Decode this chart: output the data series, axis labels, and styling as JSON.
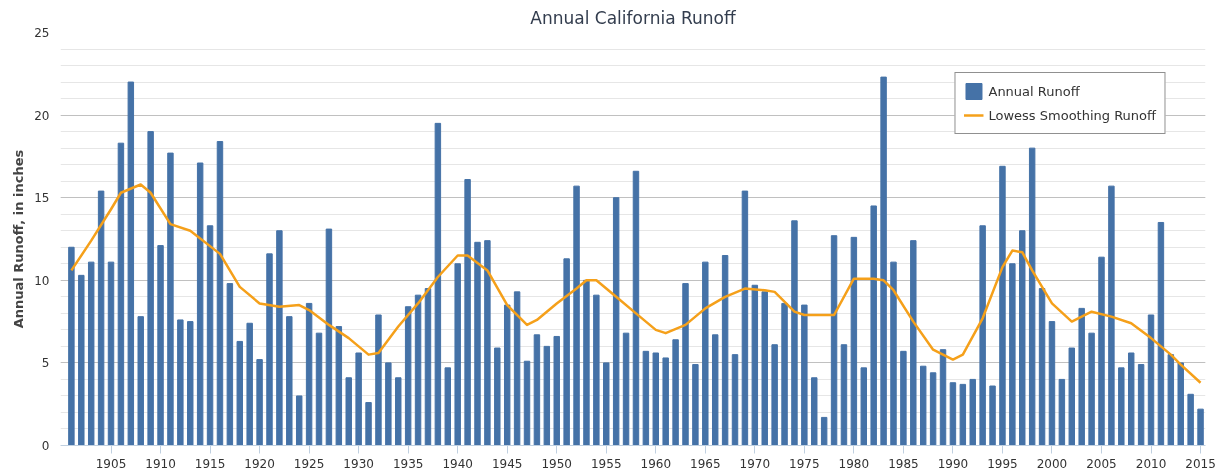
{
  "chart_data": {
    "type": "bar",
    "title": "Annual California Runoff",
    "ylabel": "Annual Runoff, in inches",
    "x": [
      1901,
      1902,
      1903,
      1904,
      1905,
      1906,
      1907,
      1908,
      1909,
      1910,
      1911,
      1912,
      1913,
      1914,
      1915,
      1916,
      1917,
      1918,
      1919,
      1920,
      1921,
      1922,
      1923,
      1924,
      1925,
      1926,
      1927,
      1928,
      1929,
      1930,
      1931,
      1932,
      1933,
      1934,
      1935,
      1936,
      1937,
      1938,
      1939,
      1940,
      1941,
      1942,
      1943,
      1944,
      1945,
      1946,
      1947,
      1948,
      1949,
      1950,
      1951,
      1952,
      1953,
      1954,
      1955,
      1956,
      1957,
      1958,
      1959,
      1960,
      1961,
      1962,
      1963,
      1964,
      1965,
      1966,
      1967,
      1968,
      1969,
      1970,
      1971,
      1972,
      1973,
      1974,
      1975,
      1976,
      1977,
      1978,
      1979,
      1980,
      1981,
      1982,
      1983,
      1984,
      1985,
      1986,
      1987,
      1988,
      1989,
      1990,
      1991,
      1992,
      1993,
      1994,
      1995,
      1996,
      1997,
      1998,
      1999,
      2000,
      2001,
      2002,
      2003,
      2004,
      2005,
      2006,
      2007,
      2008,
      2009,
      2010,
      2011,
      2012,
      2013,
      2014,
      2015
    ],
    "series": [
      {
        "name": "Annual Runoff",
        "color": "#4572a7",
        "values": [
          12.0,
          10.3,
          11.1,
          15.4,
          11.1,
          18.3,
          22.0,
          7.8,
          19.0,
          12.1,
          17.7,
          7.6,
          7.5,
          17.1,
          13.3,
          18.4,
          9.8,
          6.3,
          7.4,
          5.2,
          11.6,
          13.0,
          7.8,
          3.0,
          8.6,
          6.8,
          13.1,
          7.2,
          4.1,
          5.6,
          2.6,
          7.9,
          5.0,
          4.1,
          8.4,
          9.1,
          9.5,
          19.5,
          4.7,
          11.0,
          16.1,
          12.3,
          12.4,
          5.9,
          8.5,
          9.3,
          5.1,
          6.7,
          6.0,
          6.6,
          11.3,
          15.7,
          10.0,
          9.1,
          5.0,
          15.0,
          6.8,
          16.6,
          5.7,
          5.6,
          5.3,
          6.4,
          9.8,
          4.9,
          11.1,
          6.7,
          11.5,
          5.5,
          15.4,
          9.7,
          9.3,
          6.1,
          8.6,
          13.6,
          8.5,
          4.1,
          1.7,
          12.7,
          6.1,
          12.6,
          4.7,
          14.5,
          22.3,
          11.1,
          5.7,
          12.4,
          4.8,
          4.4,
          5.8,
          3.8,
          3.7,
          4.0,
          13.3,
          3.6,
          16.9,
          11.0,
          13.0,
          18.0,
          9.5,
          7.5,
          4.0,
          5.9,
          8.3,
          6.8,
          11.4,
          15.7,
          4.7,
          5.6,
          4.9,
          7.9,
          13.5,
          5.5,
          5.0,
          3.1,
          2.2
        ]
      },
      {
        "name": "Lowess Smoothing Runoff",
        "type": "line",
        "color": "#f5a01a",
        "x": [
          1901,
          1903,
          1905,
          1906,
          1908,
          1909,
          1911,
          1913,
          1916,
          1918,
          1920,
          1922,
          1924,
          1925,
          1927,
          1929,
          1931,
          1932,
          1934,
          1936,
          1938,
          1940,
          1941,
          1943,
          1945,
          1947,
          1948,
          1950,
          1952,
          1953,
          1954,
          1956,
          1958,
          1960,
          1961,
          1963,
          1965,
          1967,
          1969,
          1971,
          1972,
          1974,
          1975,
          1978,
          1980,
          1982,
          1983,
          1984,
          1986,
          1988,
          1990,
          1991,
          1993,
          1995,
          1996,
          1997,
          1998,
          2000,
          2002,
          2004,
          2006,
          2008,
          2010,
          2012,
          2013,
          2015
        ],
        "values": [
          10.6,
          12.4,
          14.3,
          15.3,
          15.8,
          15.3,
          13.4,
          13.0,
          11.6,
          9.6,
          8.6,
          8.4,
          8.5,
          8.2,
          7.3,
          6.5,
          5.5,
          5.6,
          7.2,
          8.6,
          10.2,
          11.5,
          11.5,
          10.6,
          8.5,
          7.3,
          7.6,
          8.6,
          9.5,
          10.0,
          10.0,
          9.0,
          8.0,
          7.0,
          6.8,
          7.3,
          8.3,
          9.0,
          9.5,
          9.4,
          9.3,
          8.1,
          7.9,
          7.9,
          10.1,
          10.1,
          10.0,
          9.4,
          7.5,
          5.8,
          5.2,
          5.5,
          7.7,
          10.8,
          11.8,
          11.7,
          10.6,
          8.6,
          7.5,
          8.1,
          7.8,
          7.4,
          6.5,
          5.5,
          4.9,
          3.8
        ]
      }
    ],
    "xlim": [
      1899.9,
      2015.5
    ],
    "xticks": [
      1905,
      1910,
      1915,
      1920,
      1925,
      1930,
      1935,
      1940,
      1945,
      1950,
      1955,
      1960,
      1965,
      1970,
      1975,
      1980,
      1985,
      1990,
      1995,
      2000,
      2005,
      2010,
      2015
    ],
    "ylim": [
      0,
      25
    ],
    "yticks": [
      0,
      5,
      10,
      15,
      20,
      25
    ],
    "grid": "y",
    "legend": "top right"
  }
}
